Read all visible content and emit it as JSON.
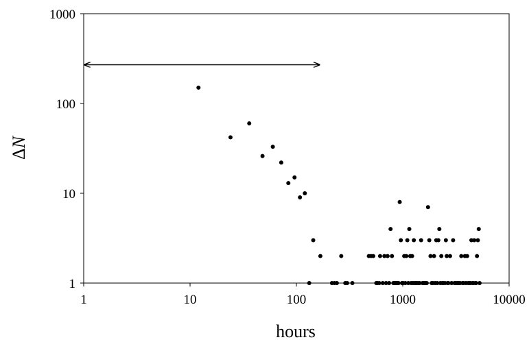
{
  "chart_data": {
    "type": "scatter",
    "xlabel": "hours",
    "ylabel": "ΔN",
    "xscale": "log",
    "yscale": "log",
    "xlim": [
      1,
      10000
    ],
    "ylim": [
      1,
      1000
    ],
    "xticks": [
      "1",
      "10",
      "100",
      "1000",
      "10000"
    ],
    "yticks": [
      "1",
      "10",
      "100",
      "1000"
    ],
    "grid": false,
    "annotations": [
      {
        "type": "double-arrow",
        "x_start": 1,
        "x_end": 165,
        "y": 270
      }
    ],
    "series": [
      {
        "marker": "filled-circle",
        "color": "#000000",
        "points": [
          [
            12,
            150
          ],
          [
            24,
            42
          ],
          [
            36,
            60
          ],
          [
            48,
            26
          ],
          [
            60,
            33
          ],
          [
            72,
            22
          ],
          [
            84,
            13
          ],
          [
            96,
            15
          ],
          [
            108,
            9
          ],
          [
            120,
            10
          ],
          [
            132,
            1
          ],
          [
            144,
            3
          ],
          [
            168,
            2
          ],
          [
            216,
            1
          ],
          [
            228,
            1
          ],
          [
            240,
            1
          ],
          [
            264,
            2
          ],
          [
            288,
            1
          ],
          [
            300,
            1
          ],
          [
            336,
            1
          ],
          [
            480,
            2
          ],
          [
            504,
            2
          ],
          [
            528,
            2
          ],
          [
            564,
            1
          ],
          [
            576,
            1
          ],
          [
            600,
            1
          ],
          [
            612,
            2
          ],
          [
            648,
            1
          ],
          [
            672,
            2
          ],
          [
            696,
            1
          ],
          [
            720,
            2
          ],
          [
            744,
            1
          ],
          [
            768,
            4
          ],
          [
            792,
            2
          ],
          [
            816,
            1
          ],
          [
            840,
            1
          ],
          [
            864,
            1
          ],
          [
            888,
            1
          ],
          [
            912,
            1
          ],
          [
            936,
            8
          ],
          [
            960,
            3
          ],
          [
            984,
            1
          ],
          [
            1008,
            1
          ],
          [
            1032,
            2
          ],
          [
            1056,
            1
          ],
          [
            1080,
            2
          ],
          [
            1104,
            3
          ],
          [
            1128,
            1
          ],
          [
            1152,
            4
          ],
          [
            1176,
            2
          ],
          [
            1200,
            1
          ],
          [
            1224,
            2
          ],
          [
            1248,
            1
          ],
          [
            1272,
            3
          ],
          [
            1296,
            1
          ],
          [
            1320,
            1
          ],
          [
            1344,
            1
          ],
          [
            1392,
            1
          ],
          [
            1440,
            1
          ],
          [
            1488,
            3
          ],
          [
            1536,
            1
          ],
          [
            1584,
            1
          ],
          [
            1632,
            1
          ],
          [
            1680,
            1
          ],
          [
            1728,
            7
          ],
          [
            1776,
            3
          ],
          [
            1824,
            2
          ],
          [
            1872,
            1
          ],
          [
            1920,
            1
          ],
          [
            1968,
            2
          ],
          [
            2016,
            1
          ],
          [
            2064,
            3
          ],
          [
            2112,
            1
          ],
          [
            2160,
            3
          ],
          [
            2208,
            4
          ],
          [
            2256,
            1
          ],
          [
            2304,
            2
          ],
          [
            2352,
            1
          ],
          [
            2400,
            1
          ],
          [
            2496,
            1
          ],
          [
            2544,
            3
          ],
          [
            2592,
            2
          ],
          [
            2640,
            1
          ],
          [
            2688,
            1
          ],
          [
            2784,
            2
          ],
          [
            2880,
            1
          ],
          [
            2976,
            3
          ],
          [
            3072,
            1
          ],
          [
            3168,
            1
          ],
          [
            3264,
            1
          ],
          [
            3360,
            1
          ],
          [
            3456,
            1
          ],
          [
            3552,
            2
          ],
          [
            3648,
            1
          ],
          [
            3744,
            1
          ],
          [
            3840,
            2
          ],
          [
            3936,
            1
          ],
          [
            4032,
            2
          ],
          [
            4128,
            1
          ],
          [
            4224,
            1
          ],
          [
            4320,
            1
          ],
          [
            4416,
            3
          ],
          [
            4512,
            1
          ],
          [
            4608,
            1
          ],
          [
            4704,
            3
          ],
          [
            4800,
            1
          ],
          [
            4896,
            1
          ],
          [
            4992,
            2
          ],
          [
            5088,
            3
          ],
          [
            5184,
            4
          ],
          [
            5280,
            1
          ]
        ]
      }
    ]
  }
}
